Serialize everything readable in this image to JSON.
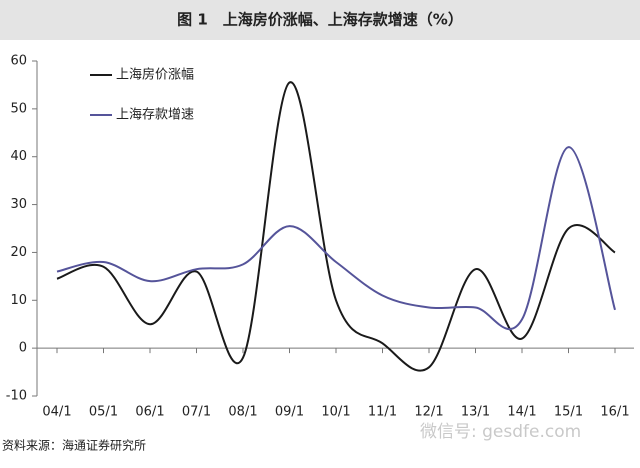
{
  "chart_data": {
    "type": "line",
    "title": "图 1　上海房价涨幅、上海存款增速（%）",
    "source": "资料来源：海通证券研究所",
    "watermark": "微信号: gesdfe.com",
    "categories": [
      "04/1",
      "05/1",
      "06/1",
      "07/1",
      "08/1",
      "09/1",
      "10/1",
      "11/1",
      "12/1",
      "13/1",
      "14/1",
      "15/1",
      "16/1"
    ],
    "series": [
      {
        "name": "上海房价涨幅",
        "color": "#1a1a1a",
        "values": [
          14.5,
          17,
          5,
          16,
          -2,
          55.5,
          10,
          1,
          -4,
          16.5,
          2,
          25,
          20
        ]
      },
      {
        "name": "上海存款增速",
        "color": "#55549a",
        "values": [
          16,
          18,
          14,
          16.5,
          17.5,
          25.5,
          18,
          11,
          8.5,
          8.5,
          6,
          42,
          8
        ]
      }
    ],
    "ylim": [
      -10,
      60
    ],
    "yticks": [
      -10,
      0,
      10,
      20,
      30,
      40,
      50,
      60
    ],
    "grid": false,
    "smooth": true,
    "legend": "top-left"
  }
}
